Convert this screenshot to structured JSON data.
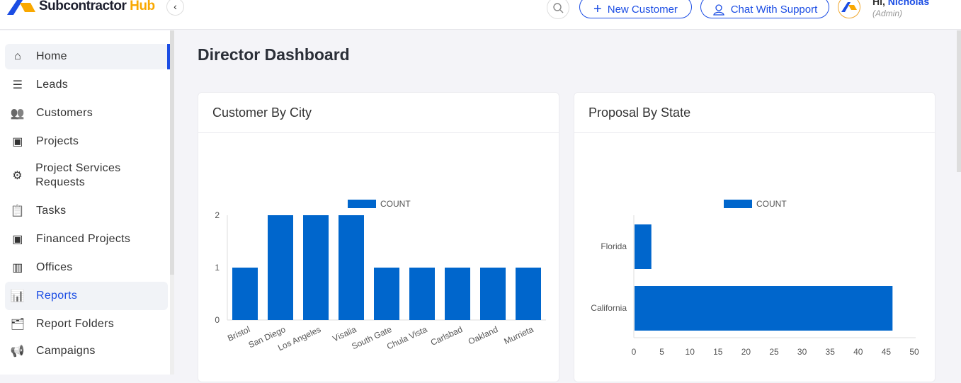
{
  "brand": {
    "name": "Subcontractor",
    "accent": "Hub"
  },
  "header": {
    "new_customer": "New Customer",
    "chat_support": "Chat With Support",
    "greeting": "Hi,",
    "user": "Nicholas",
    "role": "(Admin)"
  },
  "sidebar": {
    "items": [
      {
        "label": "Home",
        "icon": "home-icon"
      },
      {
        "label": "Leads",
        "icon": "list-icon"
      },
      {
        "label": "Customers",
        "icon": "users-icon"
      },
      {
        "label": "Projects",
        "icon": "project-icon"
      },
      {
        "label": "Project Services Requests",
        "icon": "gear-icon"
      },
      {
        "label": "Tasks",
        "icon": "clipboard-icon"
      },
      {
        "label": "Financed Projects",
        "icon": "project-icon"
      },
      {
        "label": "Offices",
        "icon": "building-icon"
      },
      {
        "label": "Reports",
        "icon": "report-icon"
      },
      {
        "label": "Report Folders",
        "icon": "folder-icon"
      },
      {
        "label": "Campaigns",
        "icon": "megaphone-icon"
      }
    ]
  },
  "page": {
    "title": "Director Dashboard"
  },
  "colors": {
    "bar": "#0066cc",
    "primary": "#1b4de4"
  },
  "chart_data": [
    {
      "type": "bar",
      "title": "Customer By City",
      "legend": "COUNT",
      "categories": [
        "Bristol",
        "San Diego",
        "Los Angeles",
        "Visalia",
        "South Gate",
        "Chula Vista",
        "Carlsbad",
        "Oakland",
        "Murrieta"
      ],
      "values": [
        1,
        2,
        2,
        2,
        1,
        1,
        1,
        1,
        1
      ],
      "ylim": [
        0,
        2
      ],
      "yticks": [
        0,
        1,
        2
      ]
    },
    {
      "type": "bar",
      "orientation": "horizontal",
      "title": "Proposal By State",
      "legend": "COUNT",
      "categories": [
        "Florida",
        "California"
      ],
      "values": [
        3,
        46
      ],
      "xlim": [
        0,
        50
      ],
      "xticks": [
        0,
        5,
        10,
        15,
        20,
        25,
        30,
        35,
        40,
        45,
        50
      ]
    }
  ]
}
